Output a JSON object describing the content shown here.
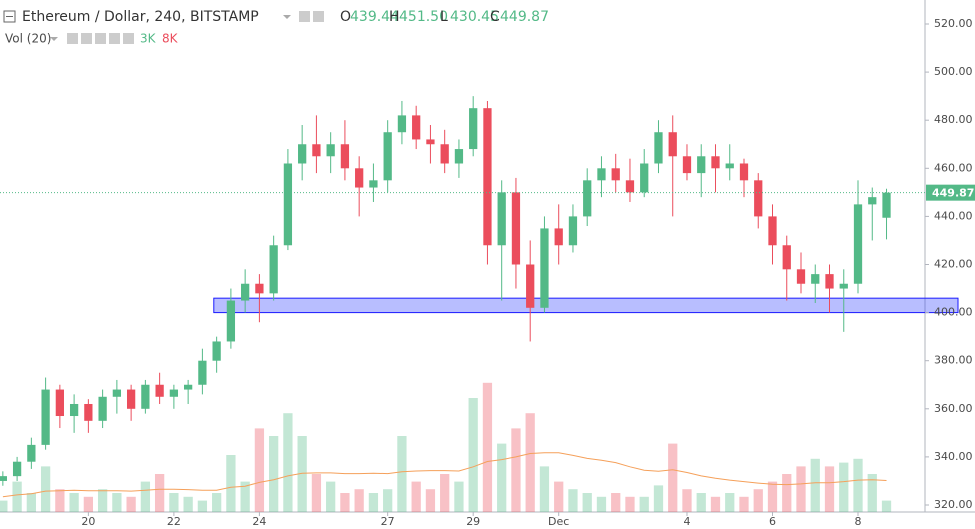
{
  "chart_data": {
    "type": "candlestick",
    "title": "Ethereum / Dollar, 240, BITSTAMP",
    "ohlc_letters": [
      "O",
      "H",
      "L",
      "C"
    ],
    "last_labels": [
      "439.44",
      "451.50",
      "430.45",
      "449.87"
    ],
    "up_color": "#53b987",
    "down_color": "#eb4d5c",
    "open": [
      330,
      332,
      338,
      345,
      368,
      357,
      362,
      355,
      365,
      368,
      360,
      370,
      365,
      368,
      370,
      380,
      388,
      405,
      412,
      408,
      428,
      462,
      470,
      465,
      470,
      460,
      452,
      455,
      475,
      482,
      472,
      470,
      462,
      468,
      485,
      428,
      450,
      420,
      402,
      435,
      428,
      440,
      455,
      460,
      455,
      450,
      462,
      475,
      465,
      458,
      465,
      460,
      462,
      455,
      440,
      428,
      418,
      412,
      416,
      410,
      412,
      445,
      439.44
    ],
    "high": [
      334,
      340,
      348,
      373,
      370,
      366,
      364,
      368,
      372,
      370,
      372,
      375,
      370,
      372,
      385,
      390,
      410,
      418,
      416,
      432,
      468,
      478,
      482,
      475,
      480,
      465,
      462,
      480,
      488,
      486,
      478,
      476,
      472,
      490,
      488,
      455,
      456,
      430,
      440,
      445,
      445,
      460,
      465,
      466,
      464,
      468,
      480,
      482,
      470,
      470,
      470,
      470,
      464,
      458,
      445,
      432,
      425,
      420,
      420,
      418,
      455,
      452,
      451.5
    ],
    "low": [
      328,
      330,
      335,
      343,
      352,
      350,
      350,
      352,
      358,
      355,
      358,
      362,
      360,
      362,
      366,
      375,
      385,
      400,
      396,
      405,
      426,
      455,
      458,
      458,
      455,
      440,
      446,
      450,
      470,
      468,
      462,
      458,
      456,
      465,
      420,
      405,
      410,
      388,
      400,
      420,
      425,
      436,
      448,
      450,
      446,
      448,
      458,
      440,
      455,
      448,
      450,
      455,
      448,
      435,
      420,
      405,
      408,
      404,
      400,
      392,
      408,
      430,
      430.45
    ],
    "close": [
      332,
      338,
      345,
      368,
      357,
      362,
      355,
      365,
      368,
      360,
      370,
      365,
      368,
      370,
      380,
      388,
      405,
      412,
      408,
      428,
      462,
      470,
      465,
      470,
      460,
      452,
      455,
      475,
      482,
      472,
      470,
      462,
      468,
      485,
      428,
      450,
      420,
      402,
      435,
      428,
      440,
      455,
      460,
      455,
      450,
      462,
      475,
      465,
      458,
      465,
      460,
      462,
      455,
      440,
      428,
      418,
      412,
      416,
      410,
      412,
      445,
      448,
      449.87
    ],
    "xlim": [
      -0.2,
      64.7
    ],
    "xticks": [
      {
        "value": 6,
        "label": "20"
      },
      {
        "value": 12,
        "label": "22"
      },
      {
        "value": 18,
        "label": "24"
      },
      {
        "value": 27,
        "label": "27"
      },
      {
        "value": 33,
        "label": "29"
      },
      {
        "value": 39,
        "label": "Dec"
      },
      {
        "value": 48,
        "label": "4"
      },
      {
        "value": 54,
        "label": "6"
      },
      {
        "value": 60,
        "label": "8"
      }
    ],
    "ylim": [
      320,
      520
    ],
    "yticks": [
      {
        "value": 320,
        "label": "320.00"
      },
      {
        "value": 340,
        "label": "340.00"
      },
      {
        "value": 360,
        "label": "360.00"
      },
      {
        "value": 380,
        "label": "380.00"
      },
      {
        "value": 400,
        "label": "400.00"
      },
      {
        "value": 420,
        "label": "420.00"
      },
      {
        "value": 440,
        "label": "440.00"
      },
      {
        "value": 460,
        "label": "460.00"
      },
      {
        "value": 480,
        "label": "480.00"
      },
      {
        "value": 500,
        "label": "500.00"
      },
      {
        "value": 520,
        "label": "520.00"
      }
    ],
    "zone": {
      "from": 400,
      "to": 406,
      "start": 14.8,
      "color": "#3344ff"
    },
    "volume": {
      "name": "Vol (20)",
      "header_labels": [
        "3K",
        "8K"
      ],
      "y2lim": [
        0,
        40
      ],
      "values": [
        3,
        8,
        5,
        12,
        6,
        5,
        4,
        6,
        5,
        4,
        8,
        10,
        5,
        4,
        3,
        5,
        15,
        8,
        22,
        20,
        26,
        20,
        10,
        8,
        5,
        6,
        5,
        6,
        20,
        8,
        6,
        10,
        8,
        30,
        34,
        18,
        22,
        26,
        12,
        8,
        6,
        5,
        4,
        5,
        4,
        4,
        7,
        18,
        6,
        5,
        4,
        5,
        4,
        6,
        8,
        10,
        12,
        14,
        12,
        13,
        14,
        10,
        3
      ],
      "ma": [
        4,
        4.5,
        4.8,
        5.5,
        5.6,
        5.7,
        5.6,
        5.6,
        5.6,
        5.5,
        5.7,
        6,
        6,
        5.9,
        5.7,
        5.7,
        6.5,
        6.8,
        7.8,
        8.5,
        9.5,
        10.2,
        10.3,
        10.3,
        10.1,
        10.1,
        10.2,
        10.1,
        10.6,
        10.8,
        10.9,
        10.9,
        10.8,
        11.9,
        13.3,
        13.8,
        14.5,
        15.4,
        15.6,
        15.6,
        14.9,
        14.1,
        13.6,
        13,
        11.9,
        11,
        10.7,
        11.1,
        10.4,
        9.5,
        8.9,
        8.4,
        8,
        7.6,
        7.3,
        7.2,
        7.4,
        7.7,
        7.7,
        8,
        8.4,
        8.5,
        8.3
      ],
      "ma_color": "#f5a05a"
    }
  }
}
